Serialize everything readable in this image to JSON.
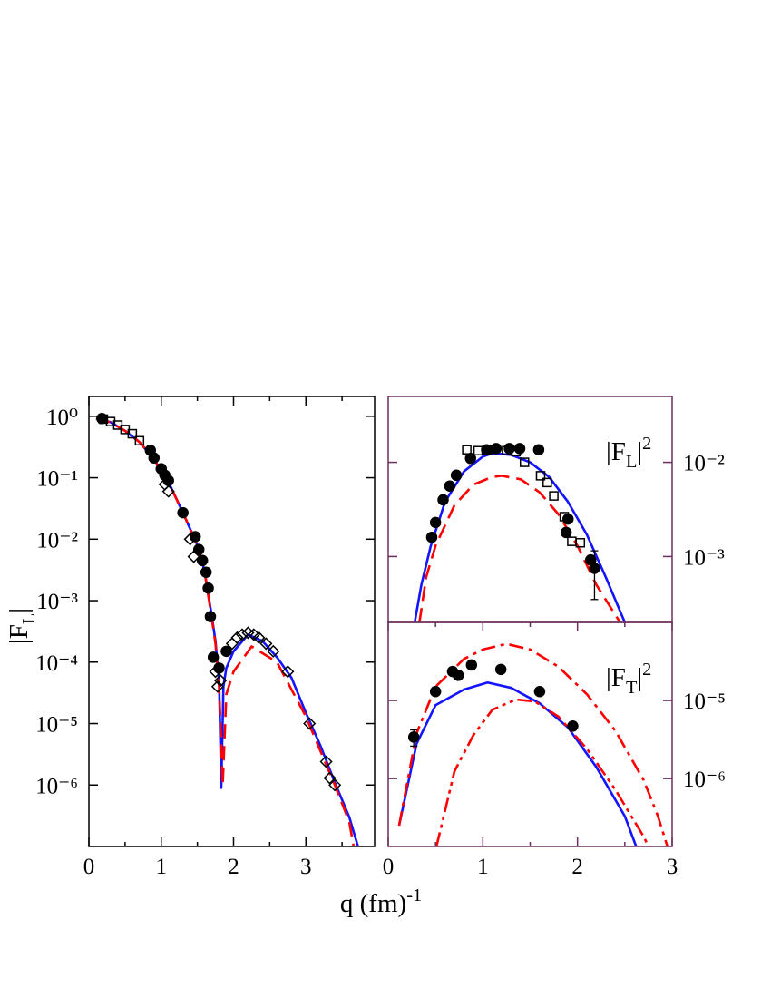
{
  "chart_data": [
    {
      "type": "line",
      "ylog": true,
      "frame_color": "#000000",
      "ytick_labels": "left",
      "xlabel": {
        "text": "q (fm",
        "sup": "-1",
        "end": ")"
      },
      "ylabel": {
        "text": "|F",
        "sub": "L",
        "end": "|"
      },
      "xlim": [
        0,
        3.95
      ],
      "xticks": [
        0,
        1,
        2,
        3
      ],
      "xminorticks": [
        0.5,
        1.5,
        2.5,
        3.5
      ],
      "ylim": [
        1e-07,
        2.1
      ],
      "yticks": [
        {
          "value": 1,
          "label": "10⁰"
        },
        {
          "value": 0.1,
          "label": "10⁻¹"
        },
        {
          "value": 0.01,
          "label": "10⁻²"
        },
        {
          "value": 0.001,
          "label": "10⁻³"
        },
        {
          "value": 0.0001,
          "label": "10⁻⁴"
        },
        {
          "value": 1e-05,
          "label": "10⁻⁵"
        },
        {
          "value": 1e-06,
          "label": "10⁻⁶"
        }
      ],
      "series": [
        {
          "style": "solid",
          "color": "#1414ff",
          "x": [
            0.1,
            0.3,
            0.5,
            0.7,
            0.9,
            1.0,
            1.1,
            1.3,
            1.5,
            1.6,
            1.7,
            1.75,
            1.8,
            1.83,
            1.86,
            1.9,
            2.0,
            2.2,
            2.4,
            2.6,
            2.8,
            3.0,
            3.2,
            3.4,
            3.6,
            3.72
          ],
          "values": [
            0.92,
            0.8,
            0.58,
            0.38,
            0.2,
            0.13,
            0.085,
            0.027,
            0.008,
            0.003,
            0.00055,
            0.00022,
            5e-05,
            9e-07,
            4e-05,
            8e-05,
            0.00015,
            0.00028,
            0.00022,
            0.00012,
            5.6e-05,
            1.5e-05,
            4.4e-06,
            1.1e-06,
            3e-07,
            1e-07
          ]
        },
        {
          "style": "dashed",
          "color": "#ff0000",
          "x": [
            0.1,
            0.3,
            0.5,
            0.7,
            0.9,
            1.0,
            1.1,
            1.3,
            1.5,
            1.6,
            1.7,
            1.75,
            1.8,
            1.85,
            1.9,
            2.0,
            2.25,
            2.6,
            3.0,
            3.4,
            3.6,
            3.66
          ],
          "values": [
            0.92,
            0.8,
            0.58,
            0.38,
            0.2,
            0.13,
            0.085,
            0.027,
            0.008,
            0.003,
            0.0005,
            0.0002,
            4e-05,
            1e-06,
            3e-05,
            7e-05,
            0.00018,
            0.0001,
            1.3e-05,
            1e-06,
            2.5e-07,
            1e-07
          ]
        },
        {
          "marker": "square",
          "filled": false,
          "color": "#000000",
          "x": [
            0.2,
            0.3,
            0.4,
            0.5,
            0.6,
            0.7
          ],
          "values": [
            0.9,
            0.82,
            0.72,
            0.61,
            0.52,
            0.4
          ]
        },
        {
          "marker": "circle",
          "filled": true,
          "color": "#000000",
          "x": [
            0.18,
            0.85,
            0.9,
            1.0,
            1.05,
            1.1,
            1.3,
            1.47,
            1.52,
            1.57,
            1.62,
            1.65,
            1.68,
            1.72,
            1.8,
            1.9
          ],
          "values": [
            0.92,
            0.28,
            0.21,
            0.14,
            0.11,
            0.09,
            0.027,
            0.011,
            0.0068,
            0.0045,
            0.0029,
            0.0016,
            0.00055,
            0.00012,
            8e-05,
            0.00015
          ]
        },
        {
          "marker": "diamond",
          "filled": false,
          "color": "#000000",
          "x": [
            1.05,
            1.1,
            1.4,
            1.45,
            1.75,
            1.78,
            1.82,
            1.98,
            2.05,
            2.12,
            2.2,
            2.28,
            2.35,
            2.45,
            2.55,
            2.75,
            3.05,
            3.28,
            3.33,
            3.4
          ],
          "values": [
            0.078,
            0.06,
            0.01,
            0.0052,
            7e-05,
            4e-05,
            5e-05,
            0.0002,
            0.00025,
            0.00028,
            0.0003,
            0.00028,
            0.00025,
            0.0002,
            0.00015,
            7e-05,
            1e-05,
            2.4e-06,
            1.3e-06,
            1e-06
          ]
        }
      ]
    },
    {
      "type": "line",
      "ylog": true,
      "frame_color": "#6b2d5c",
      "ytick_labels": "right",
      "annotation": {
        "text": "|F",
        "sub": "L",
        "end": "|",
        "sup": "2"
      },
      "xlim": [
        0,
        3
      ],
      "ylim": [
        0.0002,
        0.05
      ],
      "yticks": [
        {
          "value": 0.01,
          "label": "10⁻²"
        },
        {
          "value": 0.001,
          "label": "10⁻³"
        }
      ],
      "series": [
        {
          "style": "solid",
          "color": "#1414ff",
          "x": [
            0.28,
            0.35,
            0.45,
            0.6,
            0.8,
            1.0,
            1.1,
            1.3,
            1.5,
            1.7,
            1.9,
            2.1,
            2.3,
            2.5
          ],
          "values": [
            0.0002,
            0.0005,
            0.0013,
            0.0038,
            0.008,
            0.0115,
            0.0125,
            0.012,
            0.01,
            0.007,
            0.0038,
            0.0017,
            0.0006,
            0.0002
          ]
        },
        {
          "style": "dashed",
          "color": "#ff0000",
          "x": [
            0.33,
            0.4,
            0.5,
            0.7,
            0.9,
            1.1,
            1.2,
            1.4,
            1.6,
            1.8,
            2.0,
            2.2,
            2.45
          ],
          "values": [
            0.0002,
            0.0006,
            0.0013,
            0.0035,
            0.0058,
            0.007,
            0.0072,
            0.0066,
            0.0048,
            0.0028,
            0.0013,
            0.0005,
            0.0002
          ]
        },
        {
          "marker": "square",
          "filled": false,
          "color": "#000000",
          "x": [
            0.83,
            0.95,
            1.05,
            1.25,
            1.35,
            1.44,
            1.61,
            1.68,
            1.75,
            1.86,
            1.94,
            2.03
          ],
          "values": [
            0.0136,
            0.0133,
            0.0136,
            0.0133,
            0.013,
            0.01,
            0.0072,
            0.0061,
            0.0044,
            0.00265,
            0.00145,
            0.0014
          ]
        },
        {
          "marker": "circle",
          "filled": true,
          "color": "#000000",
          "x": [
            0.46,
            0.5,
            0.58,
            0.65,
            0.72,
            0.87,
            1.04,
            1.14,
            1.28,
            1.39,
            1.59,
            1.88,
            1.9,
            2.14,
            2.18
          ],
          "values": [
            0.0016,
            0.0023,
            0.004,
            0.0056,
            0.0073,
            0.011,
            0.0136,
            0.014,
            0.014,
            0.014,
            0.0136,
            0.0018,
            0.0025,
            0.00092,
            0.00075
          ],
          "errors": [
            null,
            null,
            null,
            null,
            null,
            null,
            null,
            null,
            null,
            null,
            null,
            null,
            null,
            null,
            0.0004
          ]
        }
      ]
    },
    {
      "type": "line",
      "ylog": true,
      "frame_color": "#6b2d5c",
      "ytick_labels": "right",
      "annotation": {
        "text": "|F",
        "sub": "T",
        "end": "|",
        "sup": "2"
      },
      "xlim": [
        0,
        3
      ],
      "xticks": [
        0,
        1,
        2,
        3
      ],
      "xminorticks": [
        0.5,
        1.5,
        2.5
      ],
      "ylim": [
        1.35e-07,
        0.0001
      ],
      "yticks": [
        {
          "value": 1e-05,
          "label": "10⁻⁵"
        },
        {
          "value": 1e-06,
          "label": "10⁻⁶"
        }
      ],
      "series": [
        {
          "style": "solid",
          "color": "#1414ff",
          "x": [
            0.115,
            0.3,
            0.5,
            0.8,
            1.05,
            1.3,
            1.6,
            1.9,
            2.2,
            2.5,
            2.62
          ],
          "values": [
            2.5e-07,
            2.8e-06,
            8.7e-06,
            1.38e-05,
            1.7e-05,
            1.45e-05,
            9.2e-06,
            4.5e-06,
            1.4e-06,
            3.3e-07,
            1.35e-07
          ]
        },
        {
          "style": "dashdot",
          "color": "#ff0000",
          "x": [
            0.115,
            0.3,
            0.5,
            0.8,
            1.0,
            1.25,
            1.5,
            1.8,
            2.1,
            2.4,
            2.7,
            2.85,
            2.95
          ],
          "values": [
            2.5e-07,
            3.8e-06,
            1.5e-05,
            3.4e-05,
            4.5e-05,
            5.3e-05,
            4.5e-05,
            2.7e-05,
            1.2e-05,
            4.1e-06,
            9.5e-07,
            3.3e-07,
            1.35e-07
          ]
        },
        {
          "style": "dashdotdot",
          "color": "#ff0000",
          "x": [
            0.51,
            0.7,
            0.9,
            1.1,
            1.35,
            1.55,
            1.8,
            2.1,
            2.4,
            2.7,
            2.75
          ],
          "values": [
            1.35e-07,
            1.24e-06,
            3.6e-06,
            7.6e-06,
            1.03e-05,
            9.7e-06,
            6.2e-06,
            2.4e-06,
            7.2e-07,
            1.8e-07,
            1.35e-07
          ]
        },
        {
          "marker": "circle",
          "filled": true,
          "color": "#000000",
          "x": [
            0.27,
            0.5,
            0.68,
            0.74,
            0.88,
            1.19,
            1.6,
            1.95
          ],
          "values": [
            3.4e-06,
            1.3e-05,
            2.35e-05,
            2.1e-05,
            2.85e-05,
            2.5e-05,
            1.3e-05,
            4.7e-06
          ],
          "errors": [
            8e-07,
            null,
            null,
            null,
            null,
            2.5e-06,
            null,
            5e-07
          ]
        }
      ]
    }
  ]
}
